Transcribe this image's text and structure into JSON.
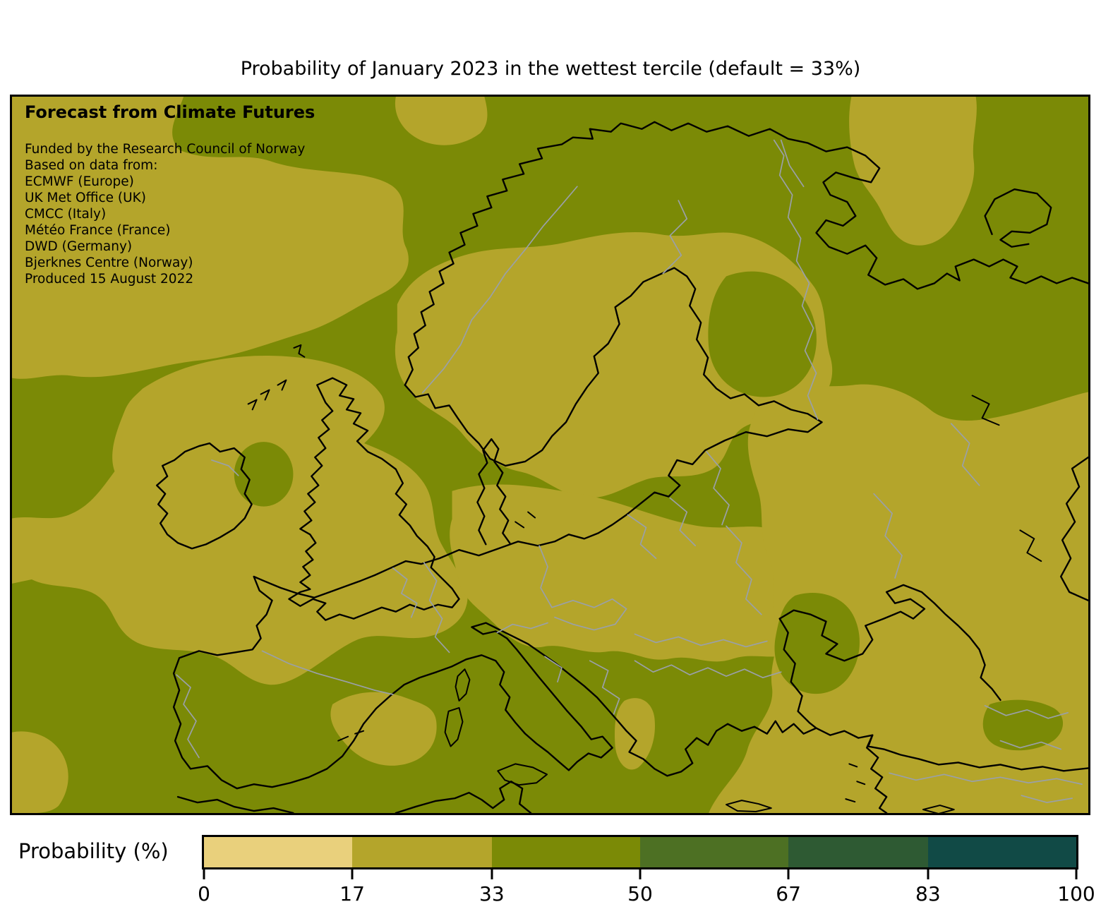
{
  "title": "Probability of January 2023 in the wettest tercile (default = 33%)",
  "map_overlay": {
    "heading": "Forecast from Climate Futures",
    "credits": [
      "Funded by the Research Council of Norway",
      "Based on data from:",
      "ECMWF (Europe)",
      "UK Met Office (UK)",
      "CMCC (Italy)",
      "Météo France (France)",
      "DWD (Germany)",
      "Bjerknes Centre (Norway)",
      "Produced 15 August 2022"
    ]
  },
  "map": {
    "colors": {
      "bin_17_33": "#b4a52b",
      "bin_33_50": "#7b8a06",
      "coastline": "#000000",
      "country_border": "#9aa0a8"
    }
  },
  "colorbar": {
    "label": "Probability (%)",
    "ticks": [
      "0",
      "17",
      "33",
      "50",
      "67",
      "83",
      "100"
    ],
    "segments": [
      {
        "from": 0,
        "to": 17,
        "color": "#e9d07c"
      },
      {
        "from": 17,
        "to": 33,
        "color": "#b4a52b"
      },
      {
        "from": 33,
        "to": 50,
        "color": "#7b8a06"
      },
      {
        "from": 50,
        "to": 67,
        "color": "#4d7023"
      },
      {
        "from": 67,
        "to": 83,
        "color": "#2e5a33"
      },
      {
        "from": 83,
        "to": 100,
        "color": "#114a46"
      }
    ]
  }
}
